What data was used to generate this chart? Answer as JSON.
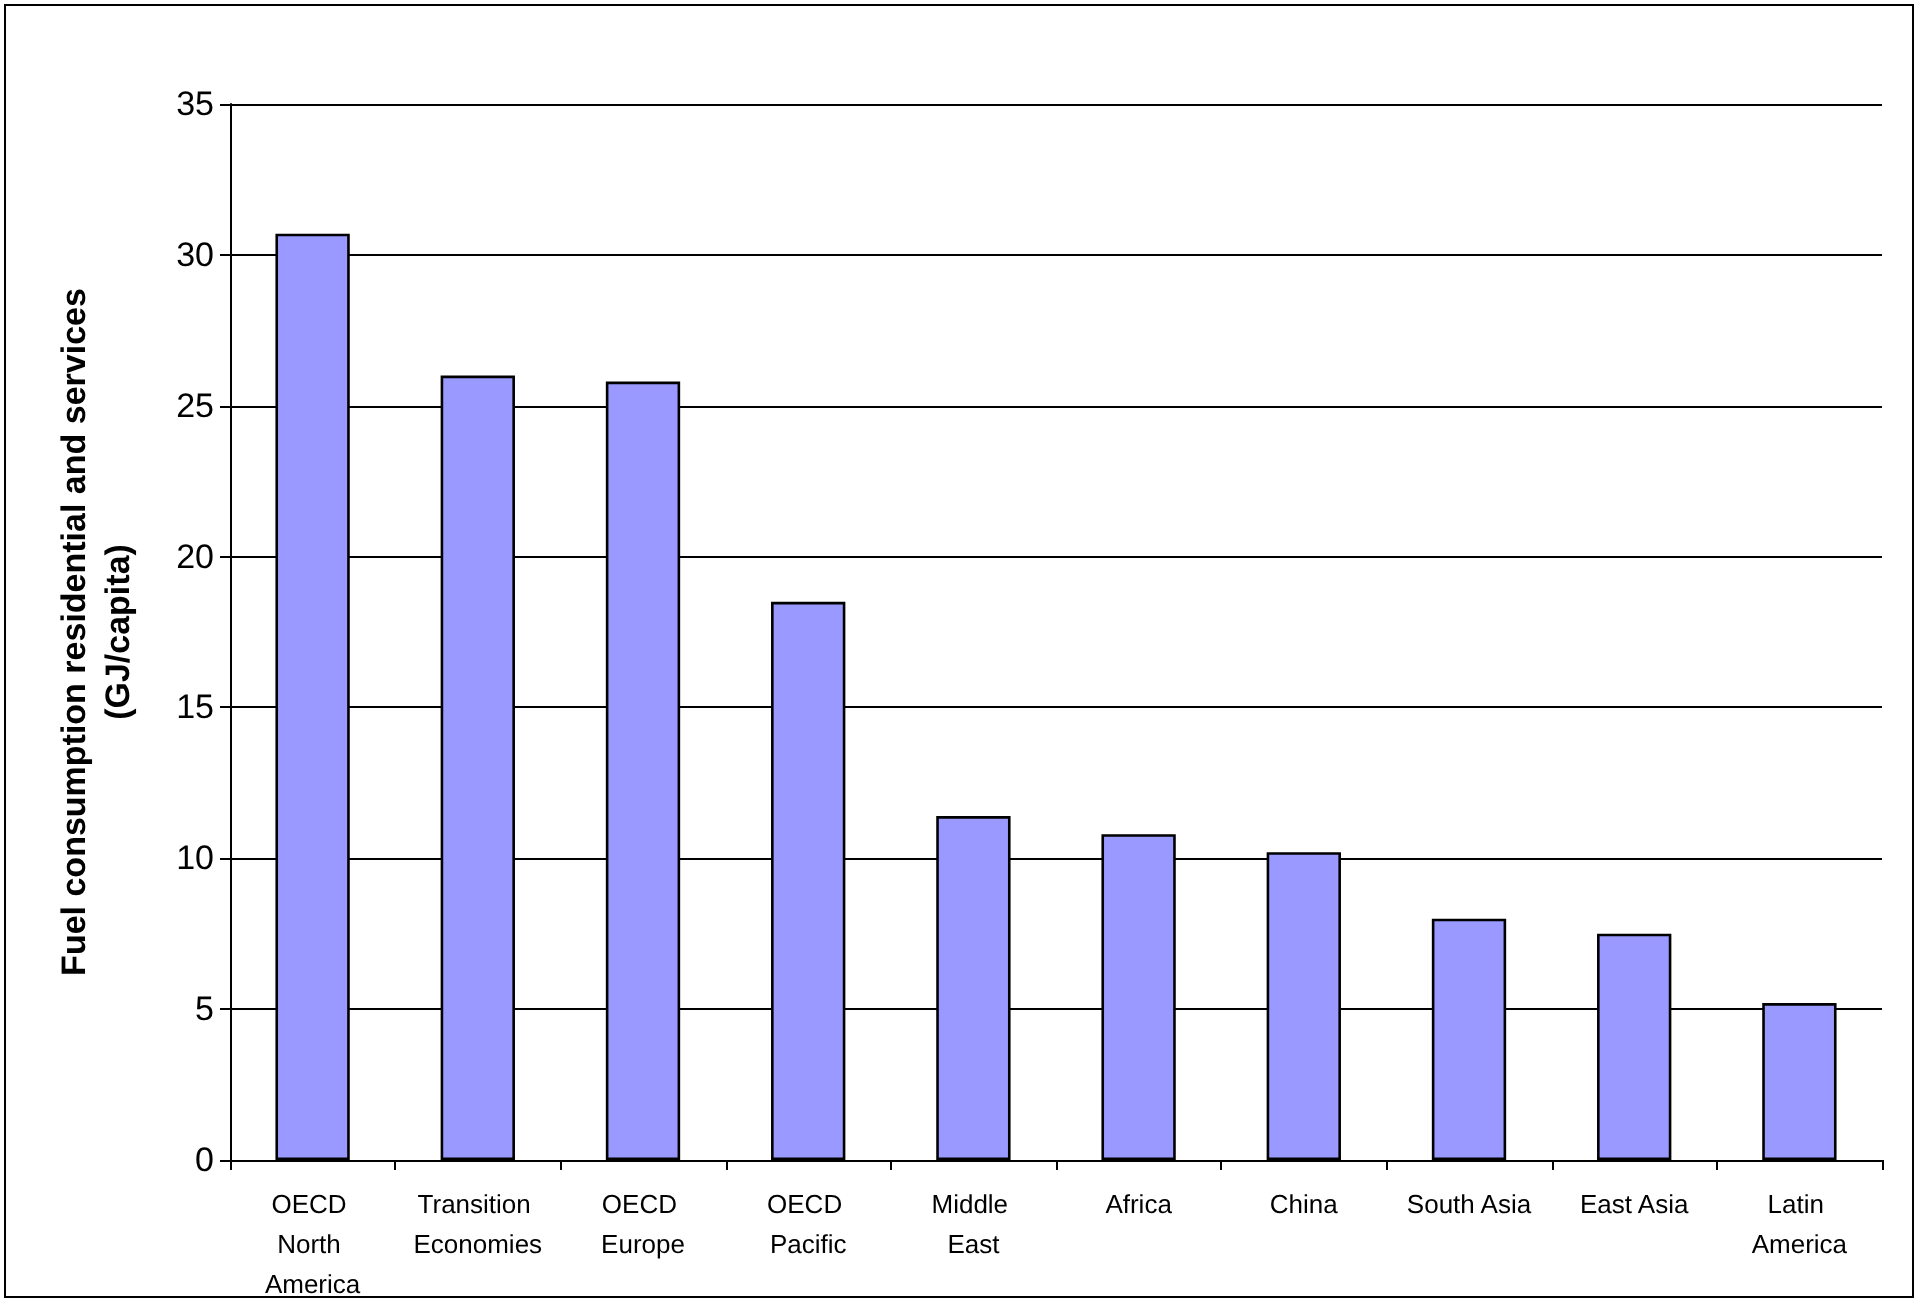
{
  "chart_data": {
    "type": "bar",
    "ylabel": "Fuel consumption residential and services\n(GJ/capita)",
    "categories": [
      "OECD North America",
      "Transition Economies",
      "OECD Europe",
      "OECD Pacific",
      "Middle East",
      "Africa",
      "China",
      "South Asia",
      "East Asia",
      "Latin America"
    ],
    "values": [
      30.7,
      26.0,
      25.8,
      18.5,
      11.4,
      10.8,
      10.2,
      8.0,
      7.5,
      5.2
    ],
    "color": "#9999ff",
    "ylim": [
      0,
      35
    ],
    "yticks": [
      0,
      5,
      10,
      15,
      20,
      25,
      30,
      35
    ],
    "grid": "y"
  }
}
